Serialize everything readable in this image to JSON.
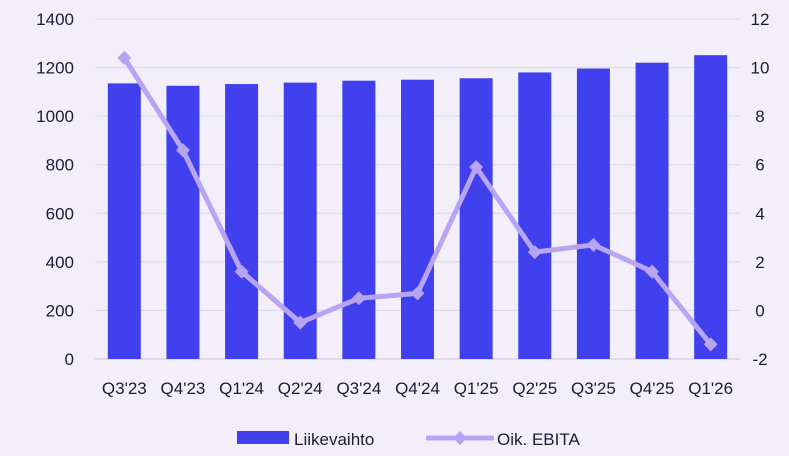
{
  "chart_data": {
    "type": "bar+line",
    "categories": [
      "Q3'23",
      "Q4'23",
      "Q1'24",
      "Q2'24",
      "Q3'24",
      "Q4'24",
      "Q1'25",
      "Q2'25",
      "Q3'25",
      "Q4'25",
      "Q1'26"
    ],
    "series": [
      {
        "name": "Liikevaihto",
        "type": "bar",
        "axis": "left",
        "color": "#4040ee",
        "values": [
          1135,
          1125,
          1132,
          1138,
          1146,
          1150,
          1156,
          1180,
          1196,
          1220,
          1251
        ]
      },
      {
        "name": "Oik. EBITA",
        "type": "line",
        "axis": "right",
        "color": "#b8a4f4",
        "values": [
          10.4,
          6.6,
          1.6,
          -0.5,
          0.5,
          0.7,
          5.9,
          2.4,
          2.7,
          1.6,
          -1.4
        ]
      }
    ],
    "yleft": {
      "min": 0,
      "max": 1400,
      "ticks": [
        0,
        200,
        400,
        600,
        800,
        1000,
        1200,
        1400
      ]
    },
    "yright": {
      "min": -2,
      "max": 12,
      "ticks": [
        "-2",
        "0",
        "2",
        "4",
        "6",
        "8",
        "10",
        "12"
      ]
    },
    "grid": true,
    "legend_position": "bottom-center"
  }
}
